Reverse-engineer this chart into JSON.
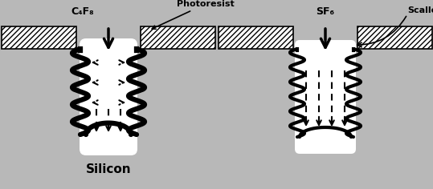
{
  "bg_color": "#b8b8b8",
  "white": "#ffffff",
  "black": "#000000",
  "label_silicon": "Silicon",
  "label_c4f8": "C₄F₈",
  "label_photoresist": "Photoresist",
  "label_sf6": "SF₆",
  "label_scallop": "Scallop",
  "fig_w": 5.39,
  "fig_h": 2.36,
  "dpi": 100
}
